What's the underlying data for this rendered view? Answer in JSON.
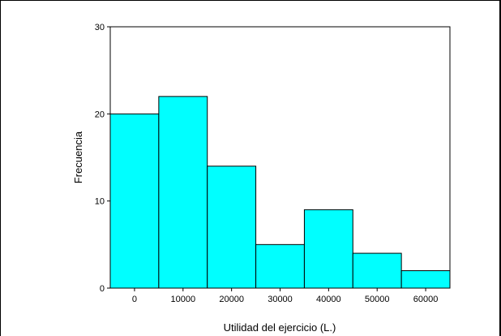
{
  "chart_data": {
    "type": "bar",
    "title": "",
    "xlabel": "Utilidad del ejercicio (L.)",
    "ylabel": "Frecuencia",
    "categories": [
      "0",
      "10000",
      "20000",
      "30000",
      "40000",
      "50000",
      "60000"
    ],
    "values": [
      20,
      22,
      14,
      5,
      9,
      4,
      2
    ],
    "ylim": [
      0,
      30
    ],
    "yticks": [
      "0",
      "10",
      "20",
      "30"
    ],
    "grid": false,
    "legend": "none",
    "bar_color": "#00ffff",
    "edge_color": "#000000"
  }
}
